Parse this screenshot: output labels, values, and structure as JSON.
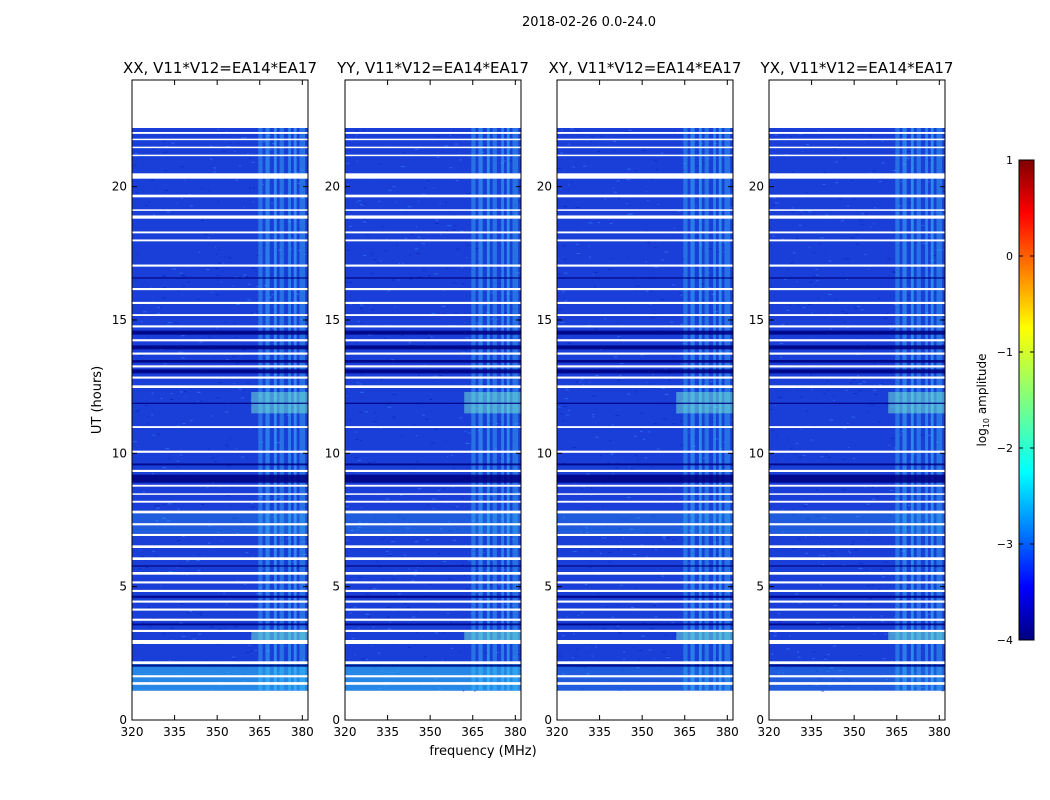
{
  "chart_data": {
    "type": "heatmap",
    "suptitle": "2018-02-26 0.0-24.0",
    "xlabel": "frequency (MHz)",
    "ylabel": "UT (hours)",
    "xlim": [
      320,
      382
    ],
    "ylim": [
      0,
      24
    ],
    "xticks": [
      "320",
      "335",
      "350",
      "365",
      "380"
    ],
    "xtick_values": [
      320,
      335,
      350,
      365,
      380
    ],
    "yticks": [
      "0",
      "5",
      "10",
      "15",
      "20"
    ],
    "ytick_values": [
      0,
      5,
      10,
      15,
      20
    ],
    "data_time_range": [
      1.1,
      22.2
    ],
    "bright_band_mhz": [
      362,
      382
    ],
    "panels": [
      {
        "title": "XX, V11*V12=EA14*EA17"
      },
      {
        "title": "YY, V11*V12=EA14*EA17"
      },
      {
        "title": "XY, V11*V12=EA14*EA17"
      },
      {
        "title": "YX, V11*V12=EA14*EA17"
      }
    ],
    "colorbar": {
      "label_prefix": "log",
      "label_sub": "10",
      "label_suffix": " amplitude",
      "range": [
        -4,
        1
      ],
      "ticks": [
        "1",
        "0",
        "−1",
        "−2",
        "−3",
        "−4"
      ],
      "tick_values": [
        1,
        0,
        -1,
        -2,
        -3,
        -4
      ],
      "colormap": "jet"
    }
  }
}
